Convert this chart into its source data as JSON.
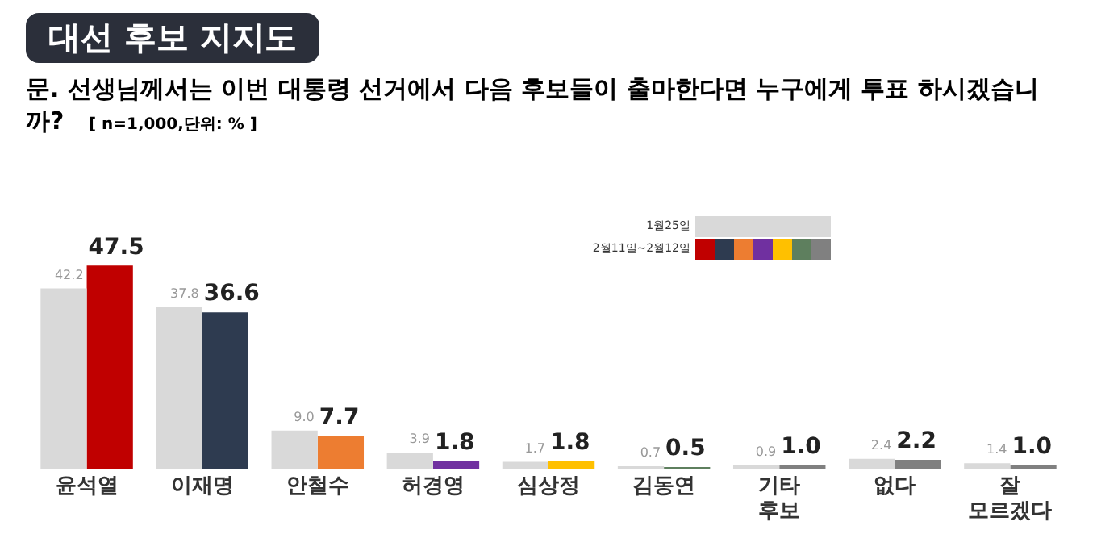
{
  "chart_data": {
    "type": "bar",
    "title": "대선 후보 지지도",
    "subtitle": "문. 선생님께서는 이번 대통령 선거에서 다음 후보들이 출마한다면 누구에게 투표 하시겠습니까?",
    "annotations": [
      "[ n=1,000,단위: % ]"
    ],
    "categories": [
      "윤석열",
      "이재명",
      "안철수",
      "허경영",
      "심상정",
      "김동연",
      "기타 후보",
      "없다",
      "잘 모르겠다"
    ],
    "series": [
      {
        "name": "1월25일",
        "color": "#d9d9d9",
        "values": [
          42.2,
          37.8,
          9.0,
          3.9,
          1.7,
          0.7,
          0.9,
          2.4,
          1.4
        ],
        "value_labels": [
          "42.2",
          "37.8",
          "9.0",
          "3.9",
          "1.7",
          "0.7",
          "0.9",
          "2.4",
          "1.4"
        ]
      },
      {
        "name": "2월11일~2월12일",
        "colors": [
          "#c00000",
          "#2e3b50",
          "#ed7d31",
          "#7030a0",
          "#ffc000",
          "#5e7f5e",
          "#808080",
          "#808080",
          "#808080"
        ],
        "values": [
          47.5,
          36.6,
          7.7,
          1.8,
          1.8,
          0.5,
          1.0,
          2.2,
          1.0
        ],
        "value_labels": [
          "47.5",
          "36.6",
          "7.7",
          "1.8",
          "1.8",
          "0.5",
          "1.0",
          "2.2",
          "1.0"
        ]
      }
    ],
    "data_labels": true,
    "legend": "top right",
    "grid": false,
    "tick_labels": "x"
  }
}
